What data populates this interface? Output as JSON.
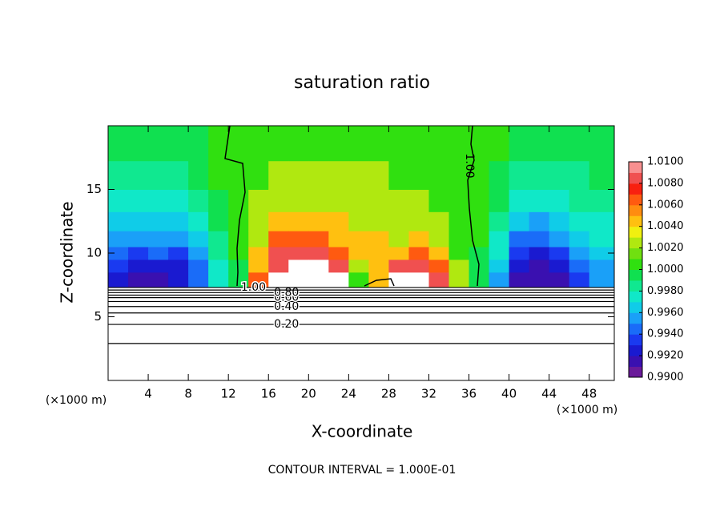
{
  "chart_data": {
    "type": "contour",
    "title": "saturation ratio",
    "x_label": "X-coordinate",
    "y_label": "Z-coordinate",
    "x_unit": "(×1000 m)",
    "y_unit": "(×1000 m)",
    "footer": "CONTOUR INTERVAL = 1.000E-01",
    "xlim": [
      0,
      50.5
    ],
    "xticks": [
      4,
      8,
      12,
      16,
      20,
      24,
      28,
      32,
      36,
      40,
      44,
      48
    ],
    "ylim": [
      0,
      20
    ],
    "yticks": [
      5,
      10,
      15
    ],
    "clim": [
      0.99,
      1.01
    ],
    "cticks": [
      {
        "value": 1.01,
        "label": "1.0100"
      },
      {
        "value": 1.008,
        "label": "1.0080"
      },
      {
        "value": 1.006,
        "label": "1.0060"
      },
      {
        "value": 1.004,
        "label": "1.0040"
      },
      {
        "value": 1.002,
        "label": "1.0020"
      },
      {
        "value": 1.0,
        "label": "1.0000"
      },
      {
        "value": 0.998,
        "label": "0.9980"
      },
      {
        "value": 0.996,
        "label": "0.9960"
      },
      {
        "value": 0.994,
        "label": "0.9940"
      },
      {
        "value": 0.992,
        "label": "0.9920"
      },
      {
        "value": 0.99,
        "label": "0.9900"
      }
    ],
    "colors": [
      "#6a1a9a",
      "#3a10b0",
      "#1a1ad0",
      "#1a3af0",
      "#1a6cf8",
      "#1aa0f8",
      "#10cce8",
      "#10e8c8",
      "#10e890",
      "#10e050",
      "#30e010",
      "#70e010",
      "#b0e810",
      "#f0f010",
      "#ffc010",
      "#ff8c10",
      "#ff5a10",
      "#f82010",
      "#f05050",
      "#f89090"
    ],
    "contour_lines": {
      "levels": [
        0.1,
        0.2,
        0.3,
        0.4,
        0.5,
        0.6,
        0.7,
        0.8,
        0.9,
        1.0
      ],
      "labels": [
        null,
        "0.20",
        null,
        "0.40",
        null,
        "0.60",
        null,
        "0.80",
        null,
        "1.00"
      ],
      "z": [
        2.9,
        4.4,
        5.3,
        5.8,
        6.2,
        6.5,
        6.7,
        6.9,
        7.1,
        7.3
      ]
    },
    "field": {
      "x": [
        1,
        3,
        5,
        7,
        9,
        11,
        13,
        15,
        17,
        19,
        21,
        23,
        25,
        27,
        29,
        31,
        33,
        35,
        37,
        39,
        41,
        43,
        45,
        47,
        49
      ],
      "z": [
        8,
        9,
        10,
        11,
        12.5,
        14,
        16,
        18.5
      ],
      "values": [
        [
          0.992,
          0.993,
          0.994,
          0.995,
          0.996,
          0.997,
          0.998,
          0.999
        ],
        [
          0.991,
          0.992,
          0.993,
          0.995,
          0.996,
          0.997,
          0.998,
          0.999
        ],
        [
          0.991,
          0.992,
          0.994,
          0.995,
          0.996,
          0.997,
          0.998,
          0.999
        ],
        [
          0.992,
          0.992,
          0.993,
          0.995,
          0.996,
          0.997,
          0.998,
          0.999
        ],
        [
          0.994,
          0.994,
          0.995,
          0.996,
          0.997,
          0.998,
          0.999,
          0.999
        ],
        [
          0.997,
          0.997,
          0.998,
          0.998,
          0.999,
          0.999,
          1.0,
          1.0
        ],
        [
          0.999,
          0.999,
          1.0,
          1.0,
          1.0,
          1.0,
          1.0,
          1.0
        ],
        [
          1.006,
          1.005,
          1.004,
          1.003,
          1.002,
          1.002,
          1.001,
          1.0
        ],
        [
          1.011,
          1.009,
          1.008,
          1.006,
          1.004,
          1.003,
          1.002,
          1.001
        ],
        [
          1.011,
          1.011,
          1.009,
          1.007,
          1.005,
          1.003,
          1.002,
          1.001
        ],
        [
          1.011,
          1.01,
          1.008,
          1.006,
          1.005,
          1.003,
          1.002,
          1.001
        ],
        [
          1.011,
          1.008,
          1.006,
          1.005,
          1.004,
          1.003,
          1.002,
          1.001
        ],
        [
          1.001,
          1.003,
          1.004,
          1.004,
          1.003,
          1.003,
          1.002,
          1.001
        ],
        [
          1.004,
          1.004,
          1.004,
          1.004,
          1.003,
          1.002,
          1.002,
          1.001
        ],
        [
          1.011,
          1.008,
          1.005,
          1.003,
          1.003,
          1.002,
          1.001,
          1.001
        ],
        [
          1.011,
          1.009,
          1.006,
          1.004,
          1.003,
          1.002,
          1.001,
          1.001
        ],
        [
          1.008,
          1.006,
          1.004,
          1.003,
          1.002,
          1.001,
          1.001,
          1.0
        ],
        [
          1.002,
          1.002,
          1.001,
          1.001,
          1.001,
          1.0,
          1.0,
          1.0
        ],
        [
          0.999,
          0.999,
          0.999,
          1.0,
          1.0,
          1.0,
          1.0,
          1.0
        ],
        [
          0.995,
          0.996,
          0.997,
          0.997,
          0.998,
          0.999,
          0.999,
          1.0
        ],
        [
          0.991,
          0.992,
          0.993,
          0.994,
          0.996,
          0.997,
          0.998,
          0.999
        ],
        [
          0.991,
          0.991,
          0.992,
          0.994,
          0.995,
          0.997,
          0.998,
          0.999
        ],
        [
          0.991,
          0.992,
          0.993,
          0.995,
          0.996,
          0.997,
          0.998,
          0.999
        ],
        [
          0.993,
          0.994,
          0.995,
          0.996,
          0.997,
          0.998,
          0.998,
          0.999
        ],
        [
          0.995,
          0.995,
          0.996,
          0.997,
          0.997,
          0.998,
          0.999,
          0.999
        ]
      ]
    }
  }
}
